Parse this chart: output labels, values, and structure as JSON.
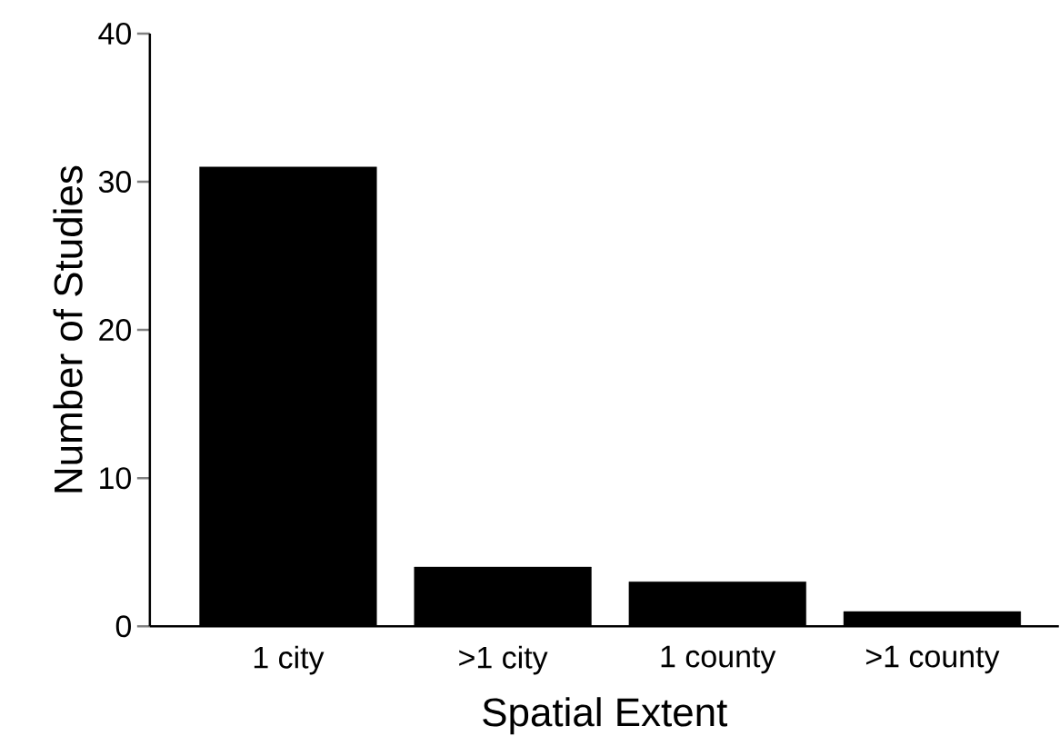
{
  "chart_data": {
    "type": "bar",
    "xlabel": "Spatial Extent",
    "ylabel": "Number of Studies",
    "categories": [
      "1 city",
      ">1 city",
      "1 county",
      ">1 county"
    ],
    "values": [
      31,
      4,
      3,
      1
    ],
    "color": "#000000",
    "ylim": [
      0,
      40
    ],
    "yticks": [
      0,
      10,
      20,
      30,
      40
    ],
    "grid": false
  }
}
